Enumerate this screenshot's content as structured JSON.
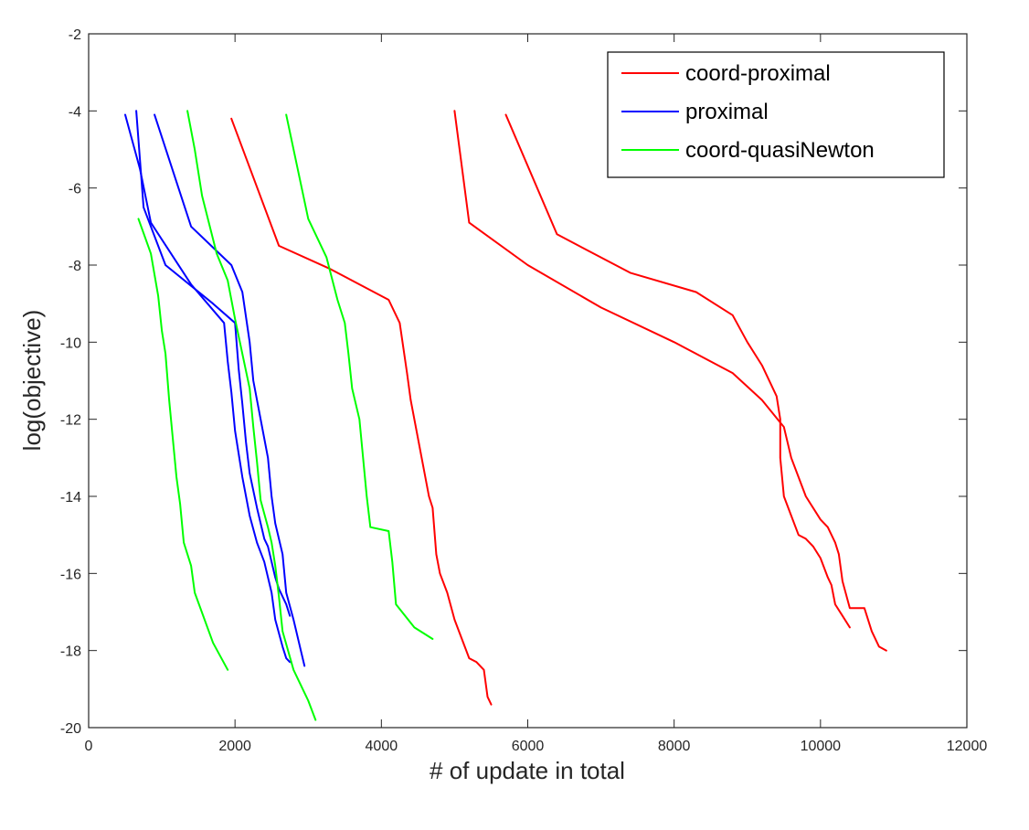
{
  "chart_data": {
    "type": "line",
    "title": "",
    "xlabel": "# of update in total",
    "ylabel": "log(objective)",
    "xlim": [
      0,
      12000
    ],
    "ylim": [
      -20,
      -2
    ],
    "xticks": [
      0,
      2000,
      4000,
      6000,
      8000,
      10000,
      12000
    ],
    "yticks": [
      -20,
      -18,
      -16,
      -14,
      -12,
      -10,
      -8,
      -6,
      -4,
      -2
    ],
    "grid": false,
    "legend_position": "top-right",
    "legend": [
      {
        "label": "coord-proximal",
        "color": "#ff0000"
      },
      {
        "label": "proximal",
        "color": "#0000ff"
      },
      {
        "label": "coord-quasiNewton",
        "color": "#00ff00"
      }
    ],
    "series": [
      {
        "legend_index": 0,
        "color": "#ff0000",
        "points": [
          [
            1950,
            -4.2
          ],
          [
            2600,
            -7.5
          ],
          [
            3300,
            -8.1
          ],
          [
            4100,
            -8.9
          ],
          [
            4250,
            -9.5
          ],
          [
            4350,
            -10.8
          ],
          [
            4400,
            -11.5
          ],
          [
            4550,
            -13
          ],
          [
            4650,
            -14
          ],
          [
            4700,
            -14.3
          ],
          [
            4750,
            -15.5
          ],
          [
            4800,
            -16
          ],
          [
            4900,
            -16.5
          ],
          [
            5000,
            -17.2
          ],
          [
            5100,
            -17.7
          ],
          [
            5200,
            -18.2
          ],
          [
            5300,
            -18.3
          ],
          [
            5400,
            -18.5
          ],
          [
            5450,
            -19.2
          ],
          [
            5500,
            -19.4
          ]
        ]
      },
      {
        "legend_index": 0,
        "color": "#ff0000",
        "points": [
          [
            5000,
            -4
          ],
          [
            5200,
            -6.9
          ],
          [
            6000,
            -8
          ],
          [
            7000,
            -9.1
          ],
          [
            8000,
            -10
          ],
          [
            8800,
            -10.8
          ],
          [
            9200,
            -11.5
          ],
          [
            9500,
            -12.2
          ],
          [
            9600,
            -13
          ],
          [
            9800,
            -14
          ],
          [
            10000,
            -14.6
          ],
          [
            10100,
            -14.8
          ],
          [
            10200,
            -15.2
          ],
          [
            10250,
            -15.5
          ],
          [
            10300,
            -16.2
          ],
          [
            10400,
            -16.9
          ],
          [
            10600,
            -16.9
          ],
          [
            10700,
            -17.5
          ],
          [
            10800,
            -17.9
          ],
          [
            10900,
            -18
          ]
        ]
      },
      {
        "legend_index": 0,
        "color": "#ff0000",
        "points": [
          [
            5700,
            -4.1
          ],
          [
            6400,
            -7.2
          ],
          [
            7400,
            -8.2
          ],
          [
            8300,
            -8.7
          ],
          [
            8800,
            -9.3
          ],
          [
            9000,
            -10
          ],
          [
            9200,
            -10.6
          ],
          [
            9400,
            -11.4
          ],
          [
            9450,
            -12
          ],
          [
            9450,
            -13
          ],
          [
            9500,
            -14
          ],
          [
            9600,
            -14.5
          ],
          [
            9700,
            -15
          ],
          [
            9800,
            -15.1
          ],
          [
            9900,
            -15.3
          ],
          [
            10000,
            -15.6
          ],
          [
            10100,
            -16.1
          ],
          [
            10150,
            -16.3
          ],
          [
            10200,
            -16.8
          ],
          [
            10300,
            -17.1
          ],
          [
            10400,
            -17.4
          ]
        ]
      },
      {
        "legend_index": 1,
        "color": "#0000ff",
        "points": [
          [
            500,
            -4.1
          ],
          [
            700,
            -5.5
          ],
          [
            850,
            -6.9
          ],
          [
            1400,
            -8.5
          ],
          [
            1850,
            -9.5
          ],
          [
            1900,
            -10.5
          ],
          [
            1950,
            -11.3
          ],
          [
            2000,
            -12.3
          ],
          [
            2100,
            -13.5
          ],
          [
            2200,
            -14.5
          ],
          [
            2300,
            -15.2
          ],
          [
            2400,
            -15.7
          ],
          [
            2500,
            -16.5
          ],
          [
            2550,
            -17.2
          ],
          [
            2650,
            -17.9
          ],
          [
            2700,
            -18.2
          ],
          [
            2750,
            -18.3
          ]
        ]
      },
      {
        "legend_index": 1,
        "color": "#0000ff",
        "points": [
          [
            650,
            -4
          ],
          [
            750,
            -6.5
          ],
          [
            1050,
            -8
          ],
          [
            1700,
            -9
          ],
          [
            2000,
            -9.5
          ],
          [
            2050,
            -10.7
          ],
          [
            2100,
            -11.6
          ],
          [
            2150,
            -12.6
          ],
          [
            2200,
            -13.4
          ],
          [
            2300,
            -14.3
          ],
          [
            2400,
            -15.1
          ],
          [
            2450,
            -15.3
          ],
          [
            2550,
            -16.1
          ],
          [
            2600,
            -16.4
          ],
          [
            2700,
            -16.8
          ],
          [
            2750,
            -17.1
          ]
        ]
      },
      {
        "legend_index": 1,
        "color": "#0000ff",
        "points": [
          [
            900,
            -4.1
          ],
          [
            1400,
            -7
          ],
          [
            1950,
            -8
          ],
          [
            2100,
            -8.7
          ],
          [
            2200,
            -10
          ],
          [
            2250,
            -11
          ],
          [
            2350,
            -12
          ],
          [
            2450,
            -13
          ],
          [
            2500,
            -14
          ],
          [
            2550,
            -14.7
          ],
          [
            2650,
            -15.5
          ],
          [
            2700,
            -16.5
          ],
          [
            2800,
            -17.2
          ],
          [
            2900,
            -18
          ],
          [
            2950,
            -18.4
          ]
        ]
      },
      {
        "legend_index": 2,
        "color": "#00ff00",
        "points": [
          [
            1350,
            -4
          ],
          [
            1450,
            -5
          ],
          [
            1550,
            -6.2
          ],
          [
            1750,
            -7.7
          ],
          [
            1900,
            -8.4
          ],
          [
            2000,
            -9.4
          ],
          [
            2100,
            -10.3
          ],
          [
            2200,
            -11.2
          ],
          [
            2250,
            -12.2
          ],
          [
            2300,
            -13.1
          ],
          [
            2350,
            -14.1
          ],
          [
            2450,
            -14.8
          ],
          [
            2500,
            -15.2
          ],
          [
            2550,
            -15.8
          ],
          [
            2600,
            -16.6
          ],
          [
            2650,
            -17.5
          ],
          [
            2800,
            -18.5
          ],
          [
            3000,
            -19.3
          ],
          [
            3100,
            -19.8
          ]
        ]
      },
      {
        "legend_index": 2,
        "color": "#00ff00",
        "points": [
          [
            680,
            -6.8
          ],
          [
            850,
            -7.7
          ],
          [
            950,
            -8.8
          ],
          [
            1000,
            -9.7
          ],
          [
            1050,
            -10.3
          ],
          [
            1100,
            -11.5
          ],
          [
            1150,
            -12.5
          ],
          [
            1200,
            -13.5
          ],
          [
            1250,
            -14.2
          ],
          [
            1300,
            -15.2
          ],
          [
            1400,
            -15.8
          ],
          [
            1450,
            -16.5
          ],
          [
            1700,
            -17.8
          ],
          [
            1900,
            -18.5
          ]
        ]
      },
      {
        "legend_index": 2,
        "color": "#00ff00",
        "points": [
          [
            2700,
            -4.1
          ],
          [
            3000,
            -6.8
          ],
          [
            3250,
            -7.8
          ],
          [
            3400,
            -8.9
          ],
          [
            3500,
            -9.5
          ],
          [
            3550,
            -10.3
          ],
          [
            3600,
            -11.2
          ],
          [
            3700,
            -12
          ],
          [
            3750,
            -13
          ],
          [
            3800,
            -14
          ],
          [
            3850,
            -14.8
          ],
          [
            4100,
            -14.9
          ],
          [
            4150,
            -15.7
          ],
          [
            4200,
            -16.8
          ],
          [
            4450,
            -17.4
          ],
          [
            4700,
            -17.7
          ]
        ]
      }
    ]
  }
}
